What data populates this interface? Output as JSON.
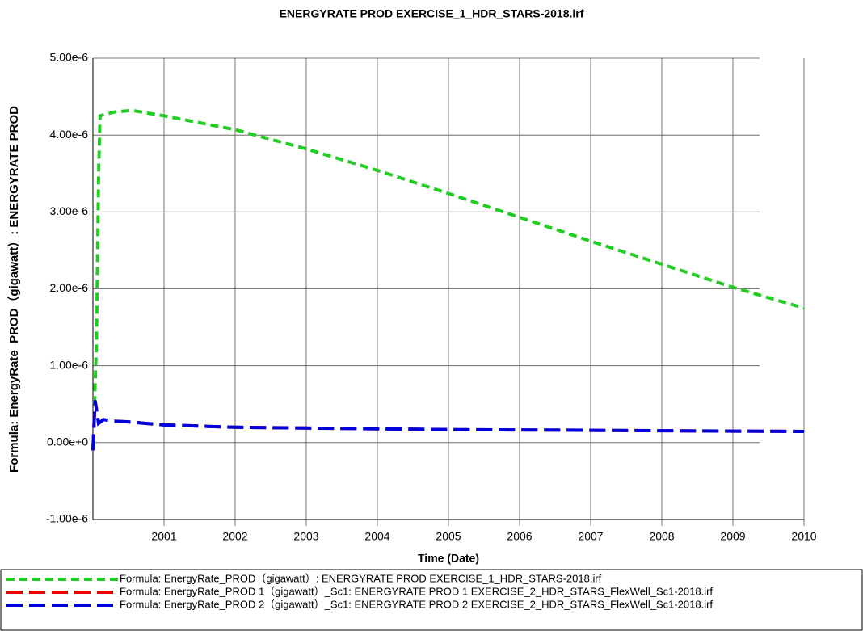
{
  "chart_data": {
    "type": "line",
    "title": "ENERGYRATE PROD EXERCISE_1_HDR_STARS-2018.irf",
    "x_label": "Time (Date)",
    "y_label": "Formula: EnergyRate_PROD（gigawatt）: ENERGYRATE PROD",
    "xlim": [
      2000,
      2010
    ],
    "xticks": [
      2001,
      2002,
      2003,
      2004,
      2005,
      2006,
      2007,
      2008,
      2009,
      2010
    ],
    "ylim": [
      -1e-06,
      5e-06
    ],
    "yticks": [
      {
        "value": -1e-06,
        "label": "-1.00e-6"
      },
      {
        "value": 0,
        "label": "0.00e+0"
      },
      {
        "value": 1e-06,
        "label": "1.00e-6"
      },
      {
        "value": 2e-06,
        "label": "2.00e-6"
      },
      {
        "value": 3e-06,
        "label": "3.00e-6"
      },
      {
        "value": 4e-06,
        "label": "4.00e-6"
      },
      {
        "value": 5e-06,
        "label": "5.00e-6"
      }
    ],
    "grid": true,
    "legend": "bottom",
    "series": [
      {
        "name": "Formula: EnergyRate_PROD（gigawatt）: ENERGYRATE PROD EXERCISE_1_HDR_STARS-2018.irf",
        "color": "#22cc22",
        "dash": "10,6",
        "x": [
          2000.02,
          2000.05,
          2000.08,
          2000.1,
          2000.3,
          2000.55,
          2001,
          2002,
          2003,
          2004,
          2005,
          2006,
          2007,
          2008,
          2009,
          2010
        ],
        "values": [
          5e-07,
          1.3e-06,
          3.5e-06,
          4.25e-06,
          4.3e-06,
          4.32e-06,
          4.25e-06,
          4.07e-06,
          3.82e-06,
          3.54e-06,
          3.24e-06,
          2.93e-06,
          2.62e-06,
          2.32e-06,
          2.02e-06,
          1.75e-06
        ]
      },
      {
        "name": "Formula: EnergyRate_PROD 1（gigawatt）_Sc1: ENERGYRATE PROD 1 EXERCISE_2_HDR_STARS_FlexWell_Sc1-2018.irf",
        "color": "#ee0000",
        "dash": "20,8",
        "x": [
          2000,
          2000.03,
          2000.08,
          2000.15,
          2000.3,
          2000.5,
          2001,
          2002,
          2003,
          2004,
          2005,
          2006,
          2007,
          2008,
          2009,
          2010
        ],
        "values": [
          -1e-07,
          5.5e-07,
          2.5e-07,
          3e-07,
          2.8e-07,
          2.7e-07,
          2.3e-07,
          2e-07,
          1.9e-07,
          1.8e-07,
          1.7e-07,
          1.65e-07,
          1.6e-07,
          1.55e-07,
          1.5e-07,
          1.45e-07
        ]
      },
      {
        "name": "Formula: EnergyRate_PROD 2（gigawatt）_Sc1: ENERGYRATE PROD 2 EXERCISE_2_HDR_STARS_FlexWell_Sc1-2018.irf",
        "color": "#0000dd",
        "dash": "20,8",
        "x": [
          2000,
          2000.03,
          2000.08,
          2000.15,
          2000.3,
          2000.5,
          2001,
          2002,
          2003,
          2004,
          2005,
          2006,
          2007,
          2008,
          2009,
          2010
        ],
        "values": [
          -1e-07,
          5.5e-07,
          2.5e-07,
          3e-07,
          2.8e-07,
          2.7e-07,
          2.3e-07,
          2e-07,
          1.9e-07,
          1.8e-07,
          1.7e-07,
          1.65e-07,
          1.6e-07,
          1.55e-07,
          1.5e-07,
          1.45e-07
        ]
      }
    ]
  }
}
